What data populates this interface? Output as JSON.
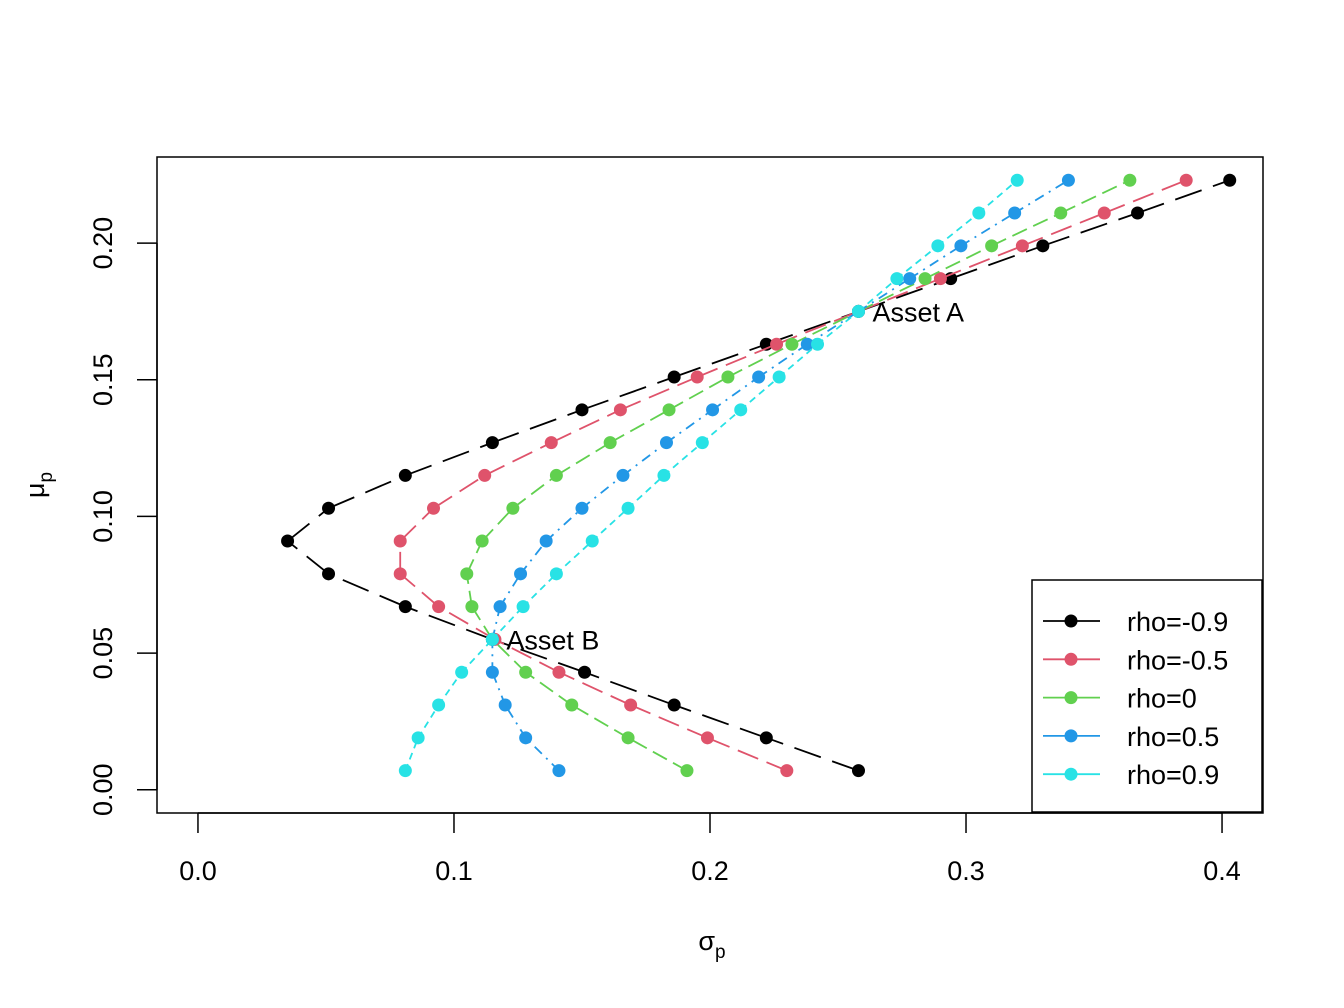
{
  "chart_data": {
    "type": "line",
    "xlabel": {
      "main": "σ",
      "sub": "p"
    },
    "ylabel": {
      "main": "μ",
      "sub": "p"
    },
    "xlim": [
      -0.016,
      0.416
    ],
    "ylim": [
      -0.0085,
      0.2315
    ],
    "xticks": [
      0.0,
      0.1,
      0.2,
      0.3,
      0.4
    ],
    "xtick_labels": [
      "0.0",
      "0.1",
      "0.2",
      "0.3",
      "0.4"
    ],
    "yticks": [
      0.0,
      0.05,
      0.1,
      0.15,
      0.2
    ],
    "ytick_labels": [
      "0.00",
      "0.05",
      "0.10",
      "0.15",
      "0.20"
    ],
    "grid": false,
    "legend_position": "bottom-right",
    "y_values": [
      0.007,
      0.019,
      0.031,
      0.043,
      0.055,
      0.067,
      0.079,
      0.091,
      0.103,
      0.115,
      0.127,
      0.139,
      0.151,
      0.163,
      0.175,
      0.187,
      0.199,
      0.211,
      0.223
    ],
    "series": [
      {
        "name": "rho=-0.9",
        "color": "#000000",
        "dash": "28,12",
        "x": [
          0.258,
          0.222,
          0.186,
          0.151,
          0.115,
          0.081,
          0.051,
          0.035,
          0.051,
          0.081,
          0.115,
          0.15,
          0.186,
          0.222,
          0.258,
          0.294,
          0.33,
          0.367,
          0.403
        ]
      },
      {
        "name": "rho=-0.5",
        "color": "#DF536B",
        "dash": "22,9",
        "x": [
          0.23,
          0.199,
          0.169,
          0.141,
          0.116,
          0.094,
          0.079,
          0.079,
          0.092,
          0.112,
          0.138,
          0.165,
          0.195,
          0.226,
          0.258,
          0.29,
          0.322,
          0.354,
          0.386
        ]
      },
      {
        "name": "rho=0",
        "color": "#61D04F",
        "dash": "16,7",
        "x": [
          0.191,
          0.168,
          0.146,
          0.128,
          0.115,
          0.107,
          0.105,
          0.111,
          0.123,
          0.14,
          0.161,
          0.184,
          0.207,
          0.232,
          0.258,
          0.284,
          0.31,
          0.337,
          0.364
        ]
      },
      {
        "name": "rho=0.5",
        "color": "#2297E6",
        "dash": "10,6,2,6",
        "x": [
          0.141,
          0.128,
          0.12,
          0.115,
          0.115,
          0.118,
          0.126,
          0.136,
          0.15,
          0.166,
          0.183,
          0.201,
          0.219,
          0.238,
          0.258,
          0.278,
          0.298,
          0.319,
          0.34
        ]
      },
      {
        "name": "rho=0.9",
        "color": "#28E2E5",
        "dash": "7,5",
        "x": [
          0.081,
          0.086,
          0.094,
          0.103,
          0.115,
          0.127,
          0.14,
          0.154,
          0.168,
          0.182,
          0.197,
          0.212,
          0.227,
          0.242,
          0.258,
          0.273,
          0.289,
          0.305,
          0.32
        ]
      }
    ],
    "annotations": [
      {
        "text": "Asset A",
        "x": 0.258,
        "y": 0.175
      },
      {
        "text": "Asset B",
        "x": 0.115,
        "y": 0.055
      }
    ]
  }
}
